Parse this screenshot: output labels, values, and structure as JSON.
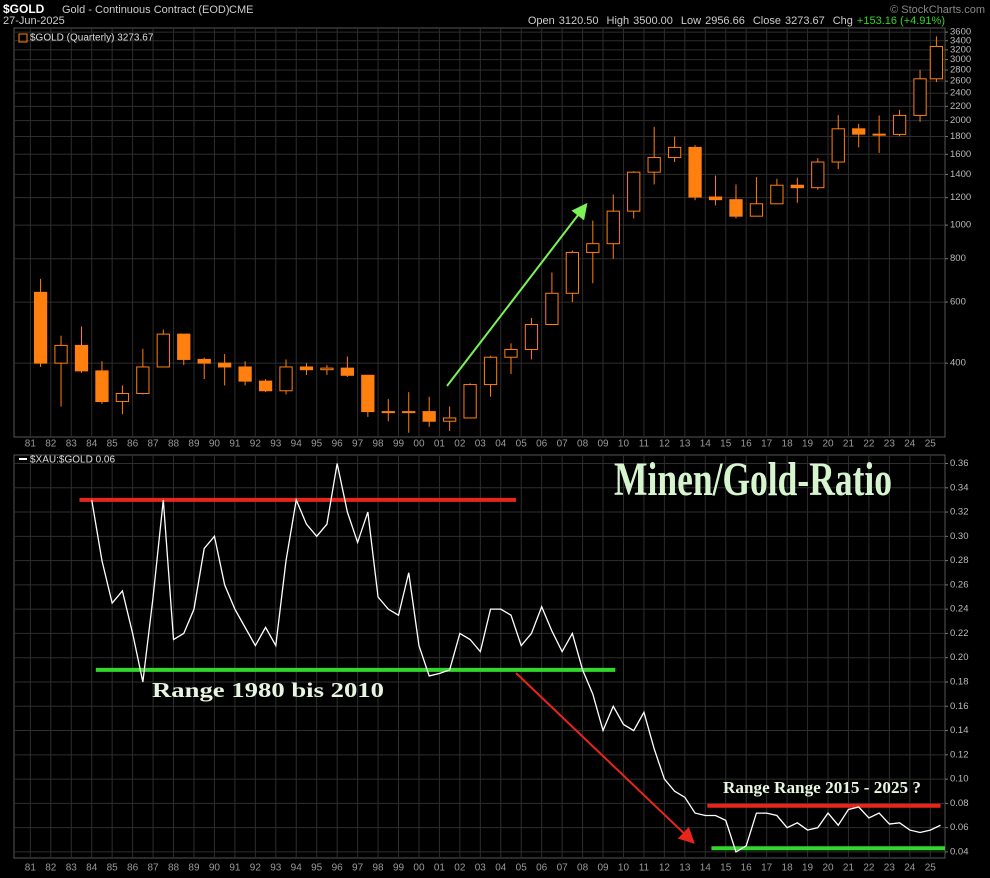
{
  "chart_data": [
    {
      "type": "candlestick",
      "symbol": "$GOLD",
      "title": "Gold - Continuous Contract (EOD)",
      "exchange": "CME",
      "date": "27-Jun-2025",
      "credit": "© StockCharts.com",
      "quote": [
        {
          "label": "Open",
          "value": "3120.50"
        },
        {
          "label": "High",
          "value": "3500.00"
        },
        {
          "label": "Low",
          "value": "2956.66"
        },
        {
          "label": "Close",
          "value": "3273.67"
        },
        {
          "label": "Chg",
          "value": "+153.16 (+4.91%)"
        }
      ],
      "legend": "$GOLD (Quarterly) 3273.67",
      "color": "#ff7f0f",
      "change_color": "#33d62a",
      "log_scale": true,
      "grid": true,
      "x": [
        1981.5,
        1982.5,
        1983.5,
        1984.5,
        1985.5,
        1986.5,
        1987.5,
        1988.5,
        1989.5,
        1990.5,
        1991.5,
        1992.5,
        1993.5,
        1994.5,
        1995.5,
        1996.5,
        1997.5,
        1998.5,
        1999.5,
        2000.5,
        2001.5,
        2002.5,
        2003.5,
        2004.5,
        2005.5,
        2006.5,
        2007.5,
        2008.5,
        2009.5,
        2010.5,
        2011.5,
        2012.5,
        2013.5,
        2014.5,
        2015.5,
        2016.5,
        2017.5,
        2018.5,
        2019.5,
        2020.5,
        2021.5,
        2022.5,
        2023.5,
        2024.5,
        2025.3
      ],
      "open": [
        640,
        400,
        450,
        380,
        310,
        327,
        390,
        485,
        410,
        400,
        390,
        355,
        333,
        390,
        383,
        387,
        369,
        290,
        288,
        290,
        272,
        278,
        347,
        416,
        438,
        517,
        636,
        834,
        884,
        1097,
        1421,
        1566,
        1675,
        1205,
        1184,
        1061,
        1152,
        1303,
        1282,
        1520,
        1895,
        1829,
        1826,
        2071,
        2641
      ],
      "high": [
        700,
        480,
        510,
        405,
        345,
        440,
        500,
        485,
        415,
        425,
        405,
        360,
        410,
        400,
        395,
        418,
        370,
        315,
        330,
        320,
        300,
        350,
        420,
        456,
        540,
        730,
        845,
        1030,
        1225,
        1430,
        1920,
        1800,
        1700,
        1390,
        1310,
        1375,
        1360,
        1370,
        1560,
        2075,
        1960,
        2070,
        2150,
        2800,
        3500
      ],
      "low": [
        390,
        300,
        375,
        305,
        285,
        325,
        390,
        395,
        360,
        345,
        345,
        330,
        325,
        370,
        370,
        365,
        280,
        272,
        252,
        262,
        255,
        277,
        320,
        372,
        410,
        515,
        600,
        680,
        800,
        1045,
        1310,
        1520,
        1180,
        1140,
        1045,
        1060,
        1150,
        1160,
        1265,
        1450,
        1675,
        1615,
        1805,
        1985,
        2585
      ],
      "close": [
        400,
        450,
        380,
        310,
        327,
        390,
        485,
        410,
        400,
        390,
        355,
        333,
        390,
        383,
        387,
        369,
        290,
        288,
        290,
        272,
        278,
        347,
        416,
        438,
        517,
        636,
        834,
        884,
        1097,
        1421,
        1566,
        1675,
        1205,
        1184,
        1061,
        1152,
        1303,
        1282,
        1520,
        1895,
        1829,
        1826,
        2071,
        2641,
        3273.67
      ],
      "xlim": [
        1980.2,
        2025.72
      ],
      "ylim": [
        245,
        3700
      ],
      "yticks": [
        400,
        600,
        800,
        1000,
        1200,
        1400,
        1600,
        1800,
        2000,
        2200,
        2400,
        2600,
        2800,
        3000,
        3200,
        3400,
        3600
      ],
      "xticks": [
        {
          "value": 1981,
          "label": "81"
        },
        {
          "value": 1982,
          "label": "82"
        },
        {
          "value": 1983,
          "label": "83"
        },
        {
          "value": 1984,
          "label": "84"
        },
        {
          "value": 1985,
          "label": "85"
        },
        {
          "value": 1986,
          "label": "86"
        },
        {
          "value": 1987,
          "label": "87"
        },
        {
          "value": 1988,
          "label": "88"
        },
        {
          "value": 1989,
          "label": "89"
        },
        {
          "value": 1990,
          "label": "90"
        },
        {
          "value": 1991,
          "label": "91"
        },
        {
          "value": 1992,
          "label": "92"
        },
        {
          "value": 1993,
          "label": "93"
        },
        {
          "value": 1994,
          "label": "94"
        },
        {
          "value": 1995,
          "label": "95"
        },
        {
          "value": 1996,
          "label": "96"
        },
        {
          "value": 1997,
          "label": "97"
        },
        {
          "value": 1998,
          "label": "98"
        },
        {
          "value": 1999,
          "label": "99"
        },
        {
          "value": 2000,
          "label": "00"
        },
        {
          "value": 2001,
          "label": "01"
        },
        {
          "value": 2002,
          "label": "02"
        },
        {
          "value": 2003,
          "label": "03"
        },
        {
          "value": 2004,
          "label": "04"
        },
        {
          "value": 2005,
          "label": "05"
        },
        {
          "value": 2006,
          "label": "06"
        },
        {
          "value": 2007,
          "label": "07"
        },
        {
          "value": 2008,
          "label": "08"
        },
        {
          "value": 2009,
          "label": "09"
        },
        {
          "value": 2010,
          "label": "10"
        },
        {
          "value": 2011,
          "label": "11"
        },
        {
          "value": 2012,
          "label": "12"
        },
        {
          "value": 2013,
          "label": "13"
        },
        {
          "value": 2014,
          "label": "14"
        },
        {
          "value": 2015,
          "label": "15"
        },
        {
          "value": 2016,
          "label": "16"
        },
        {
          "value": 2017,
          "label": "17"
        },
        {
          "value": 2018,
          "label": "18"
        },
        {
          "value": 2019,
          "label": "19"
        },
        {
          "value": 2020,
          "label": "20"
        },
        {
          "value": 2021,
          "label": "21"
        },
        {
          "value": 2022,
          "label": "22"
        },
        {
          "value": 2023,
          "label": "23"
        },
        {
          "value": 2024,
          "label": "24"
        },
        {
          "value": 2025,
          "label": "25"
        }
      ]
    },
    {
      "type": "line",
      "legend": "$XAU:$GOLD 0.06",
      "title": "Minen/Gold-Ratio",
      "annotations": [
        "Range 1980 bis 2010",
        "Range Range 2015 - 2025 ?"
      ],
      "grid": true,
      "x": [
        1984,
        1984.5,
        1985,
        1985.5,
        1986,
        1986.5,
        1987,
        1987.5,
        1988,
        1988.5,
        1989,
        1989.5,
        1990,
        1990.5,
        1991,
        1991.5,
        1992,
        1992.5,
        1993,
        1993.5,
        1994,
        1994.5,
        1995,
        1995.5,
        1996,
        1996.5,
        1997,
        1997.5,
        1998,
        1998.5,
        1999,
        1999.5,
        2000,
        2000.5,
        2001,
        2001.5,
        2002,
        2002.5,
        2003,
        2003.5,
        2004,
        2004.5,
        2005,
        2005.5,
        2006,
        2006.5,
        2007,
        2007.5,
        2008,
        2008.5,
        2009,
        2009.5,
        2010,
        2010.5,
        2011,
        2011.5,
        2012,
        2012.5,
        2013,
        2013.5,
        2014,
        2014.5,
        2015,
        2015.5,
        2016,
        2016.5,
        2017,
        2017.5,
        2018,
        2018.5,
        2019,
        2019.5,
        2020,
        2020.5,
        2021,
        2021.5,
        2022,
        2022.5,
        2023,
        2023.5,
        2024,
        2024.5,
        2025,
        2025.5
      ],
      "series": [
        {
          "color": "#ffffff",
          "values": [
            0.33,
            0.28,
            0.245,
            0.255,
            0.22,
            0.18,
            0.25,
            0.33,
            0.215,
            0.22,
            0.24,
            0.29,
            0.3,
            0.26,
            0.24,
            0.225,
            0.21,
            0.225,
            0.21,
            0.28,
            0.33,
            0.31,
            0.3,
            0.31,
            0.36,
            0.32,
            0.295,
            0.32,
            0.25,
            0.24,
            0.235,
            0.27,
            0.21,
            0.185,
            0.187,
            0.19,
            0.22,
            0.215,
            0.205,
            0.24,
            0.24,
            0.235,
            0.21,
            0.22,
            0.242,
            0.222,
            0.205,
            0.22,
            0.19,
            0.17,
            0.14,
            0.16,
            0.145,
            0.14,
            0.155,
            0.125,
            0.1,
            0.09,
            0.085,
            0.072,
            0.07,
            0.07,
            0.066,
            0.04,
            0.045,
            0.072,
            0.072,
            0.07,
            0.06,
            0.064,
            0.058,
            0.06,
            0.072,
            0.062,
            0.075,
            0.077,
            0.068,
            0.072,
            0.063,
            0.064,
            0.058,
            0.056,
            0.058,
            0.062
          ]
        }
      ],
      "reference_lines": [
        {
          "y": 0.33,
          "x": [
            1983.4,
            2004.75
          ],
          "color": "#e8251b"
        },
        {
          "y": 0.19,
          "x": [
            1984.2,
            2009.6
          ],
          "color": "#33d62a"
        },
        {
          "y": 0.078,
          "x": [
            2014.1,
            2025.5
          ],
          "color": "#e8251b"
        },
        {
          "y": 0.043,
          "x": [
            2014.3,
            2025.72
          ],
          "color": "#33d62a"
        }
      ],
      "xlim": [
        1980.2,
        2025.72
      ],
      "ylim": [
        0.035,
        0.367
      ],
      "yticks": [
        0.04,
        0.06,
        0.08,
        {
          "value": 0.1,
          "label": "0.10"
        },
        0.12,
        0.14,
        0.16,
        0.18,
        {
          "value": 0.2,
          "label": "0.20"
        },
        0.22,
        0.24,
        0.26,
        0.28,
        {
          "value": 0.3,
          "label": "0.30"
        },
        0.32,
        0.34,
        0.36
      ],
      "xticks": [
        {
          "value": 1981,
          "label": "81"
        },
        {
          "value": 1982,
          "label": "82"
        },
        {
          "value": 1983,
          "label": "83"
        },
        {
          "value": 1984,
          "label": "84"
        },
        {
          "value": 1985,
          "label": "85"
        },
        {
          "value": 1986,
          "label": "86"
        },
        {
          "value": 1987,
          "label": "87"
        },
        {
          "value": 1988,
          "label": "88"
        },
        {
          "value": 1989,
          "label": "89"
        },
        {
          "value": 1990,
          "label": "90"
        },
        {
          "value": 1991,
          "label": "91"
        },
        {
          "value": 1992,
          "label": "92"
        },
        {
          "value": 1993,
          "label": "93"
        },
        {
          "value": 1994,
          "label": "94"
        },
        {
          "value": 1995,
          "label": "95"
        },
        {
          "value": 1996,
          "label": "96"
        },
        {
          "value": 1997,
          "label": "97"
        },
        {
          "value": 1998,
          "label": "98"
        },
        {
          "value": 1999,
          "label": "99"
        },
        {
          "value": 2000,
          "label": "00"
        },
        {
          "value": 2001,
          "label": "01"
        },
        {
          "value": 2002,
          "label": "02"
        },
        {
          "value": 2003,
          "label": "03"
        },
        {
          "value": 2004,
          "label": "04"
        },
        {
          "value": 2005,
          "label": "05"
        },
        {
          "value": 2006,
          "label": "06"
        },
        {
          "value": 2007,
          "label": "07"
        },
        {
          "value": 2008,
          "label": "08"
        },
        {
          "value": 2009,
          "label": "09"
        },
        {
          "value": 2010,
          "label": "10"
        },
        {
          "value": 2011,
          "label": "11"
        },
        {
          "value": 2012,
          "label": "12"
        },
        {
          "value": 2013,
          "label": "13"
        },
        {
          "value": 2014,
          "label": "14"
        },
        {
          "value": 2015,
          "label": "15"
        },
        {
          "value": 2016,
          "label": "16"
        },
        {
          "value": 2017,
          "label": "17"
        },
        {
          "value": 2018,
          "label": "18"
        },
        {
          "value": 2019,
          "label": "19"
        },
        {
          "value": 2020,
          "label": "20"
        },
        {
          "value": 2021,
          "label": "21"
        },
        {
          "value": 2022,
          "label": "22"
        },
        {
          "value": 2023,
          "label": "23"
        },
        {
          "value": 2024,
          "label": "24"
        },
        {
          "value": 2025,
          "label": "25"
        }
      ]
    }
  ]
}
